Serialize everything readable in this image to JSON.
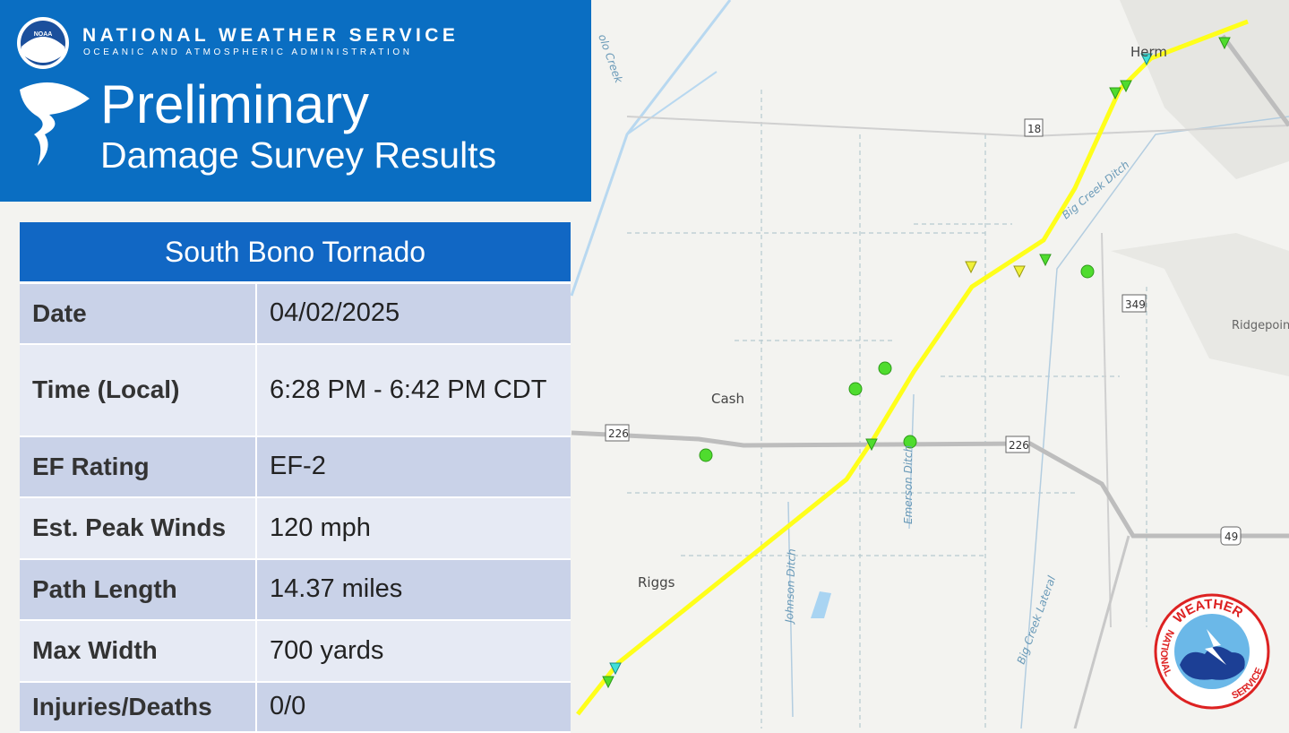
{
  "header": {
    "agency": "NATIONAL WEATHER SERVICE",
    "subagency": "OCEANIC AND ATMOSPHERIC ADMINISTRATION",
    "noaa_logo": "NOAA",
    "title": "Preliminary",
    "subtitle": "Damage Survey Results"
  },
  "table": {
    "title": "South Bono Tornado",
    "rows": [
      [
        "Date",
        "04/02/2025"
      ],
      [
        "Time (Local)",
        "6:28 PM - 6:42 PM CDT"
      ],
      [
        "EF Rating",
        "EF-2"
      ],
      [
        "Est. Peak Winds",
        "120 mph"
      ],
      [
        "Path Length",
        "14.37 miles"
      ],
      [
        "Max Width",
        "700 yards"
      ],
      [
        "Injuries/Deaths",
        "0/0"
      ]
    ]
  },
  "map": {
    "places": [
      "Cash",
      "Riggs",
      "Herm",
      "Ridgepoint"
    ],
    "roads": [
      "18",
      "349",
      "226",
      "226",
      "49"
    ],
    "waterways": [
      "Big Creek Ditch",
      "Emerson Ditch",
      "Johnson Ditch",
      "Big Creek Lateral",
      "olo Creek"
    ]
  },
  "nws_logo": {
    "top": "WEATHER",
    "left": "NATIONAL",
    "right": "SERVICE"
  }
}
